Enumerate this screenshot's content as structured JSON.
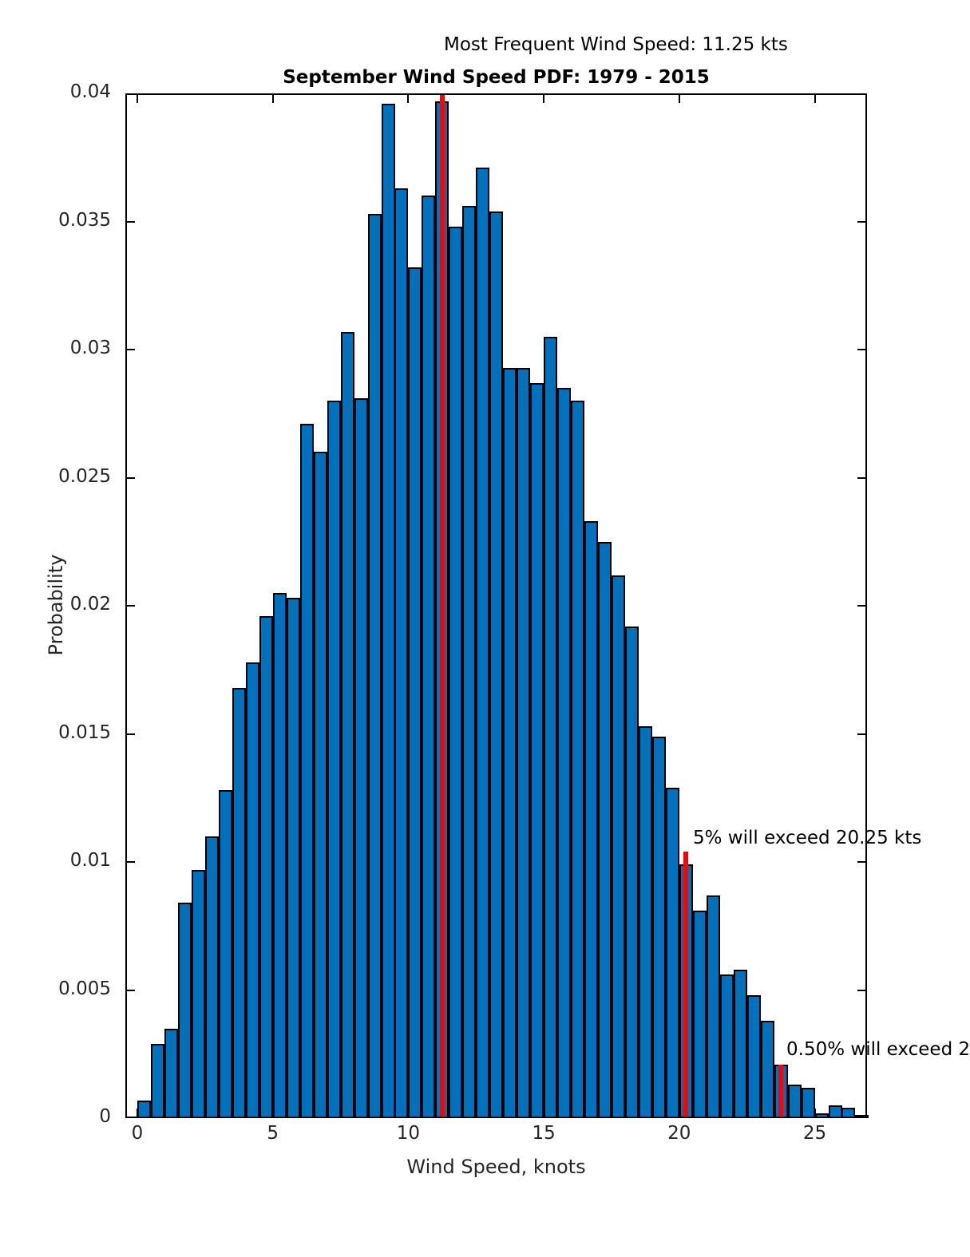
{
  "figure": {
    "top_annotation": "Most Frequent Wind Speed: 11.25 kts",
    "title": "September Wind Speed PDF: 1979 - 2015",
    "xlabel": "Wind Speed, knots",
    "ylabel": "Probability",
    "annotation_5pct": "5% will exceed 20.25 kts",
    "annotation_05pct": "0.50% will exceed 2",
    "bar_color": "#0072BD",
    "bar_edge_color": "#000000",
    "marker_line_color": "#FF0000"
  },
  "chart_data": {
    "type": "bar",
    "subtype": "histogram",
    "title": "September Wind Speed PDF: 1979 - 2015",
    "annotation": "Most Frequent Wind Speed: 11.25 kts",
    "xlabel": "Wind Speed, knots",
    "ylabel": "Probability",
    "bin_start": 0,
    "bin_width": 0.5,
    "values": [
      0.0007,
      0.0029,
      0.0035,
      0.0084,
      0.0097,
      0.011,
      0.0128,
      0.0168,
      0.0178,
      0.0196,
      0.0205,
      0.0203,
      0.0271,
      0.026,
      0.028,
      0.0307,
      0.0281,
      0.0353,
      0.0396,
      0.0363,
      0.0332,
      0.036,
      0.0397,
      0.0348,
      0.0356,
      0.0371,
      0.0354,
      0.0293,
      0.0293,
      0.0287,
      0.0305,
      0.0285,
      0.028,
      0.0233,
      0.0225,
      0.0212,
      0.0192,
      0.0153,
      0.0149,
      0.0129,
      0.0099,
      0.0081,
      0.0087,
      0.0056,
      0.0058,
      0.0048,
      0.0038,
      0.0021,
      0.0013,
      0.0012,
      0.0002,
      0.0005,
      0.0004,
      0.0001
    ],
    "xticks": [
      0,
      5,
      10,
      15,
      20,
      25
    ],
    "xtick_labels": [
      "0",
      "5",
      "10",
      "15",
      "20",
      "25"
    ],
    "yticks": [
      0,
      0.005,
      0.01,
      0.015,
      0.02,
      0.025,
      0.03,
      0.035,
      0.04
    ],
    "ytick_labels": [
      "0",
      "0.005",
      "0.01",
      "0.015",
      "0.02",
      "0.025",
      "0.03",
      "0.035",
      "0.04"
    ],
    "xlim": [
      -0.45,
      26.93
    ],
    "ylim": [
      0,
      0.04
    ],
    "grid": false,
    "legend": null,
    "marker_lines": [
      {
        "x": 11.25,
        "y_top": 0.04,
        "full_height": true,
        "label": "Most Frequent Wind Speed: 11.25 kts"
      },
      {
        "x": 20.25,
        "y_top": 0.0104,
        "full_height": false,
        "label": "5% will exceed 20.25 kts"
      },
      {
        "x": 23.75,
        "y_top": 0.0021,
        "full_height": false,
        "label": "0.50% will exceed 2"
      }
    ]
  }
}
